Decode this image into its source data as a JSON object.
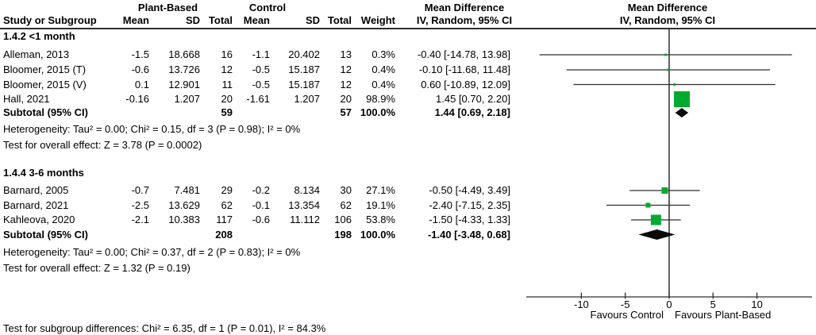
{
  "columns": {
    "study": "Study or Subgroup",
    "mean": "Mean",
    "sd": "SD",
    "total": "Total",
    "weight": "Weight"
  },
  "chart_data": {
    "type": "forest",
    "group_labels": [
      "Plant-Based",
      "Control"
    ],
    "effect_header": [
      "Mean Difference",
      "IV, Random, 95% CI"
    ],
    "axis": {
      "ticks": [
        -10,
        -5,
        0,
        5,
        10
      ],
      "xlim": [
        -16.3,
        16.3
      ],
      "favours_left": "Favours Control",
      "favours_right": "Favours Plant-Based"
    },
    "groups": [
      {
        "title": "1.4.2 <1 month",
        "studies": [
          {
            "name": "Alleman, 2013",
            "mean_t": "-1.5",
            "sd_t": "18.668",
            "n_t": "16",
            "mean_c": "-1.1",
            "sd_c": "20.402",
            "n_c": "13",
            "weight": "0.3%",
            "ci_text": "-0.40 [-14.78, 13.98]",
            "est": -0.4,
            "lo": -14.78,
            "hi": 13.98,
            "weight_pct": 0.3
          },
          {
            "name": "Bloomer, 2015 (T)",
            "mean_t": "-0.6",
            "sd_t": "13.726",
            "n_t": "12",
            "mean_c": "-0.5",
            "sd_c": "15.187",
            "n_c": "12",
            "weight": "0.4%",
            "ci_text": "-0.10 [-11.68, 11.48]",
            "est": -0.1,
            "lo": -11.68,
            "hi": 11.48,
            "weight_pct": 0.4
          },
          {
            "name": "Bloomer, 2015 (V)",
            "mean_t": "0.1",
            "sd_t": "12.901",
            "n_t": "11",
            "mean_c": "-0.5",
            "sd_c": "15.187",
            "n_c": "12",
            "weight": "0.4%",
            "ci_text": "0.60 [-10.89, 12.09]",
            "est": 0.6,
            "lo": -10.89,
            "hi": 12.09,
            "weight_pct": 0.4
          },
          {
            "name": "Hall, 2021",
            "mean_t": "-0.16",
            "sd_t": "1.207",
            "n_t": "20",
            "mean_c": "-1.61",
            "sd_c": "1.207",
            "n_c": "20",
            "weight": "98.9%",
            "ci_text": "1.45 [0.70, 2.20]",
            "est": 1.45,
            "lo": 0.7,
            "hi": 2.2,
            "weight_pct": 98.9
          }
        ],
        "subtotal": {
          "label": "Subtotal (95% CI)",
          "n_t": "59",
          "n_c": "57",
          "weight": "100.0%",
          "ci_text": "1.44 [0.69, 2.18]",
          "est": 1.44,
          "lo": 0.69,
          "hi": 2.18
        },
        "heterogeneity": "Heterogeneity: Tau² = 0.00; Chi² = 0.15, df = 3 (P = 0.98); I² = 0%",
        "overall_effect": "Test for overall effect: Z = 3.78 (P = 0.0002)"
      },
      {
        "title": "1.4.4 3-6 months",
        "studies": [
          {
            "name": "Barnard, 2005",
            "mean_t": "-0.7",
            "sd_t": "7.481",
            "n_t": "29",
            "mean_c": "-0.2",
            "sd_c": "8.134",
            "n_c": "30",
            "weight": "27.1%",
            "ci_text": "-0.50 [-4.49, 3.49]",
            "est": -0.5,
            "lo": -4.49,
            "hi": 3.49,
            "weight_pct": 27.1
          },
          {
            "name": "Barnard, 2021",
            "mean_t": "-2.5",
            "sd_t": "13.629",
            "n_t": "62",
            "mean_c": "-0.1",
            "sd_c": "13.354",
            "n_c": "62",
            "weight": "19.1%",
            "ci_text": "-2.40 [-7.15, 2.35]",
            "est": -2.4,
            "lo": -7.15,
            "hi": 2.35,
            "weight_pct": 19.1
          },
          {
            "name": "Kahleova, 2020",
            "mean_t": "-2.1",
            "sd_t": "10.383",
            "n_t": "117",
            "mean_c": "-0.6",
            "sd_c": "11.112",
            "n_c": "106",
            "weight": "53.8%",
            "ci_text": "-1.50 [-4.33, 1.33]",
            "est": -1.5,
            "lo": -4.33,
            "hi": 1.33,
            "weight_pct": 53.8
          }
        ],
        "subtotal": {
          "label": "Subtotal (95% CI)",
          "n_t": "208",
          "n_c": "198",
          "weight": "100.0%",
          "ci_text": "-1.40 [-3.48, 0.68]",
          "est": -1.4,
          "lo": -3.48,
          "hi": 0.68
        },
        "heterogeneity": "Heterogeneity: Tau² = 0.00; Chi² = 0.37, df = 2 (P = 0.83); I² = 0%",
        "overall_effect": "Test for overall effect: Z = 1.32 (P = 0.19)"
      }
    ],
    "footer": "Test for subgroup differences: Chi² = 6.35, df = 1 (P = 0.01), I² = 84.3%",
    "colors": {
      "marker_green": "#00AA30",
      "diamond_black": "#0a0a0a",
      "line": "#2e2e2e"
    }
  }
}
